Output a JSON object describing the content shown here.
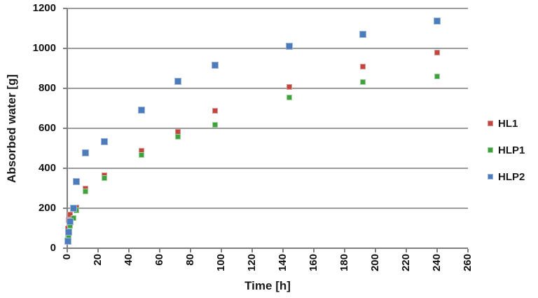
{
  "chart_data": {
    "type": "scatter",
    "title": "",
    "xlabel": "Time [h]",
    "ylabel": "Absorbed water [g]",
    "xlim": [
      0,
      260
    ],
    "ylim": [
      0,
      1200
    ],
    "x_ticks": [
      0,
      20,
      40,
      60,
      80,
      100,
      120,
      140,
      160,
      180,
      200,
      220,
      240,
      260
    ],
    "y_ticks": [
      0,
      200,
      400,
      600,
      800,
      1000,
      1200
    ],
    "grid": "horizontal-only",
    "legend_position": "right-middle",
    "grid_color": "#9b9b9b",
    "axis_color": "#7f7f7f",
    "x": [
      0.5,
      1,
      2,
      4,
      6,
      12,
      24,
      48,
      72,
      96,
      144,
      192,
      240
    ],
    "series": [
      {
        "name": "HL1",
        "marker": "square",
        "color": "#C2453F",
        "border_color": "#DC9694",
        "values": [
          100,
          140,
          170,
          195,
          205,
          300,
          365,
          487,
          583,
          688,
          808,
          910,
          980
        ]
      },
      {
        "name": "HLP1",
        "marker": "square",
        "color": "#3FA13C",
        "border_color": "#A2D39E",
        "values": [
          48,
          60,
          113,
          150,
          190,
          285,
          350,
          467,
          557,
          618,
          755,
          830,
          858
        ]
      },
      {
        "name": "HLP2",
        "marker": "square",
        "color": "#4C7CBB",
        "border_color": "#9DB6DD",
        "values": [
          35,
          80,
          135,
          200,
          335,
          478,
          535,
          691,
          835,
          915,
          1012,
          1070,
          1138
        ]
      }
    ]
  }
}
